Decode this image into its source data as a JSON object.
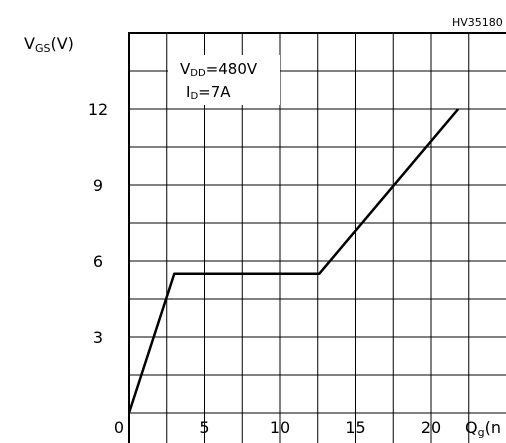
{
  "chart_data": {
    "type": "line",
    "figure_code": "HV35180",
    "ylabel": "V GS(V)",
    "ylabel_main": "V",
    "ylabel_sub": "GS",
    "ylabel_unit": "(V)",
    "xlabel_main": "Q",
    "xlabel_sub": "g",
    "xlabel_unit": "(n",
    "annotations": [
      {
        "main": "V",
        "sub": "DD",
        "value": "=480V"
      },
      {
        "main": "I",
        "sub": "D",
        "value": "=7A"
      }
    ],
    "xlim": [
      0,
      23.5
    ],
    "ylim": [
      -2,
      16
    ],
    "x_ticks": [
      0,
      5,
      10,
      15,
      20
    ],
    "x_tick_labels": [
      "0",
      "5",
      "10",
      "15",
      "20"
    ],
    "y_ticks": [
      3,
      6,
      9,
      12
    ],
    "y_tick_labels": [
      "3",
      "6",
      "9",
      "12"
    ],
    "grid": true,
    "series": [
      {
        "x": [
          0,
          3.0,
          12.6,
          21.8
        ],
        "y": [
          0,
          5.5,
          5.5,
          12.0
        ]
      }
    ]
  }
}
